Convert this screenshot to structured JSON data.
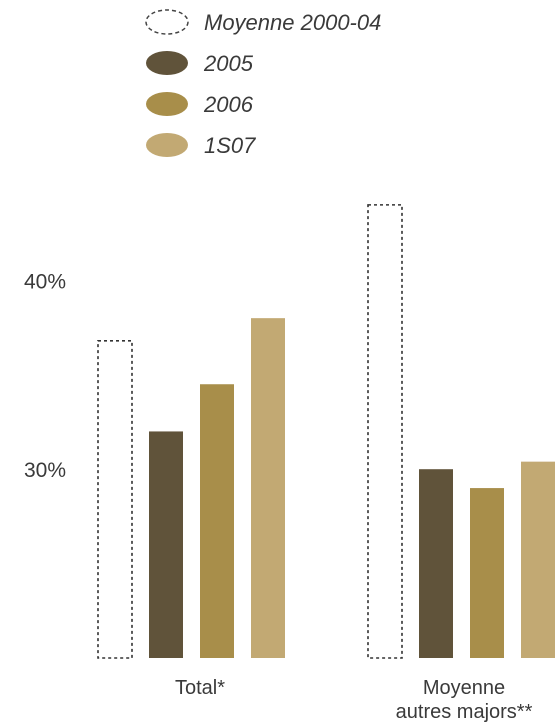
{
  "chart_data": {
    "type": "bar",
    "title": "",
    "xlabel": "",
    "ylabel": "",
    "categories": [
      {
        "lines": [
          "Total*"
        ]
      },
      {
        "lines": [
          "Moyenne",
          "autres majors**"
        ]
      }
    ],
    "series": [
      {
        "name": "Moyenne 2000-04",
        "values": [
          36.8,
          44.0
        ],
        "color": "#ffffff",
        "outline": "dashed"
      },
      {
        "name": "2005",
        "values": [
          32.0,
          30.0
        ],
        "color": "#60533a",
        "outline": "none"
      },
      {
        "name": "2006",
        "values": [
          34.5,
          29.0
        ],
        "color": "#a88e4a",
        "outline": "none"
      },
      {
        "name": "1S07",
        "values": [
          38.0,
          30.4
        ],
        "color": "#c2a973",
        "outline": "none"
      }
    ],
    "y_ticks": [
      {
        "value": 40,
        "label": "40%"
      },
      {
        "value": 30,
        "label": "30%"
      }
    ],
    "ylim": [
      20,
      45
    ],
    "grid": false,
    "legend_position": "top-center"
  }
}
